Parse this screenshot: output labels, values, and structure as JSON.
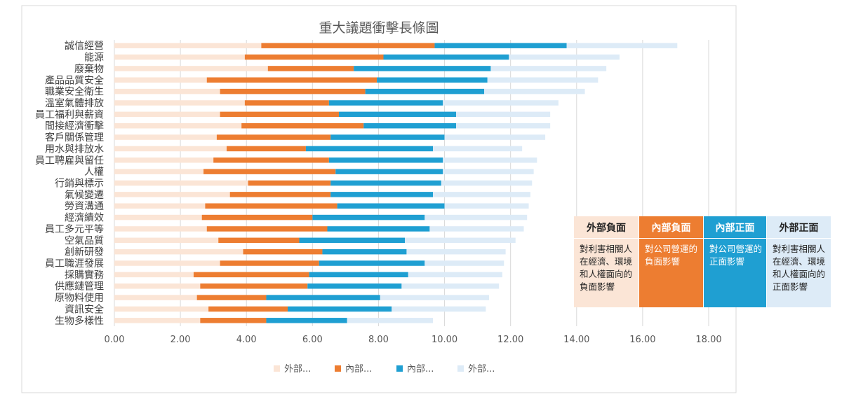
{
  "chart_data": {
    "type": "bar",
    "orientation": "horizontal",
    "stacked": true,
    "title": "重大議題衝擊長條圖",
    "xlabel": "",
    "ylabel": "",
    "xlim": [
      0,
      18
    ],
    "xticks": [
      "0.00",
      "2.00",
      "4.00",
      "6.00",
      "8.00",
      "10.00",
      "12.00",
      "14.00",
      "16.00",
      "18.00"
    ],
    "grid": true,
    "legend_position": "bottom",
    "categories": [
      "誠信經營",
      "能源",
      "廢棄物",
      "產品品質安全",
      "職業安全衛生",
      "溫室氣體排放",
      "員工福利與薪資",
      "間接經濟衝擊",
      "客戶關係管理",
      "用水與排放水",
      "員工聘雇與留任",
      "人權",
      "行銷與標示",
      "氣候變遷",
      "勞資溝通",
      "經濟績效",
      "員工多元平等",
      "空氣品質",
      "創新研發",
      "員工職涯發展",
      "採購實務",
      "供應鏈管理",
      "原物料使用",
      "資訊安全",
      "生物多樣性"
    ],
    "series": [
      {
        "name": "外部...",
        "color": "#fbe5d6",
        "values": [
          4.45,
          3.95,
          4.65,
          2.8,
          3.2,
          3.95,
          3.2,
          3.85,
          3.1,
          3.4,
          3.0,
          2.7,
          4.05,
          3.5,
          2.75,
          2.65,
          2.8,
          3.15,
          3.9,
          3.2,
          2.4,
          2.6,
          2.5,
          2.85,
          2.6
        ]
      },
      {
        "name": "內部...",
        "color": "#ed7d31",
        "values": [
          5.25,
          4.2,
          2.6,
          5.15,
          4.4,
          2.55,
          3.6,
          3.7,
          3.45,
          2.4,
          3.5,
          4.0,
          2.5,
          3.05,
          4.0,
          3.35,
          3.65,
          2.45,
          2.4,
          3.0,
          3.5,
          3.25,
          2.1,
          2.4,
          2.0
        ]
      },
      {
        "name": "內部...",
        "color": "#1f9fd2",
        "values": [
          4.0,
          3.8,
          4.15,
          3.35,
          3.6,
          3.45,
          3.55,
          2.8,
          3.45,
          3.85,
          3.45,
          3.25,
          3.35,
          3.1,
          3.25,
          3.4,
          3.1,
          3.2,
          2.55,
          3.2,
          3.0,
          2.85,
          3.45,
          3.15,
          2.45
        ]
      },
      {
        "name": "外部...",
        "color": "#ddebf7",
        "values": [
          3.35,
          3.35,
          3.5,
          3.35,
          3.05,
          3.5,
          2.85,
          2.85,
          3.05,
          2.7,
          2.85,
          2.75,
          2.75,
          2.95,
          2.55,
          3.1,
          2.85,
          3.35,
          3.0,
          2.4,
          2.85,
          2.95,
          3.3,
          2.85,
          2.6
        ]
      }
    ]
  },
  "legend_table": {
    "headers": [
      "外部負面",
      "內部負面",
      "內部正面",
      "外部正面"
    ],
    "descriptions": [
      "對利害相關人在經濟、環境和人權面向的負面影響",
      "對公司營運的負面影響",
      "對公司營運的正面影響",
      "對利害相關人在經濟、環境和人權面向的正面影響"
    ]
  }
}
